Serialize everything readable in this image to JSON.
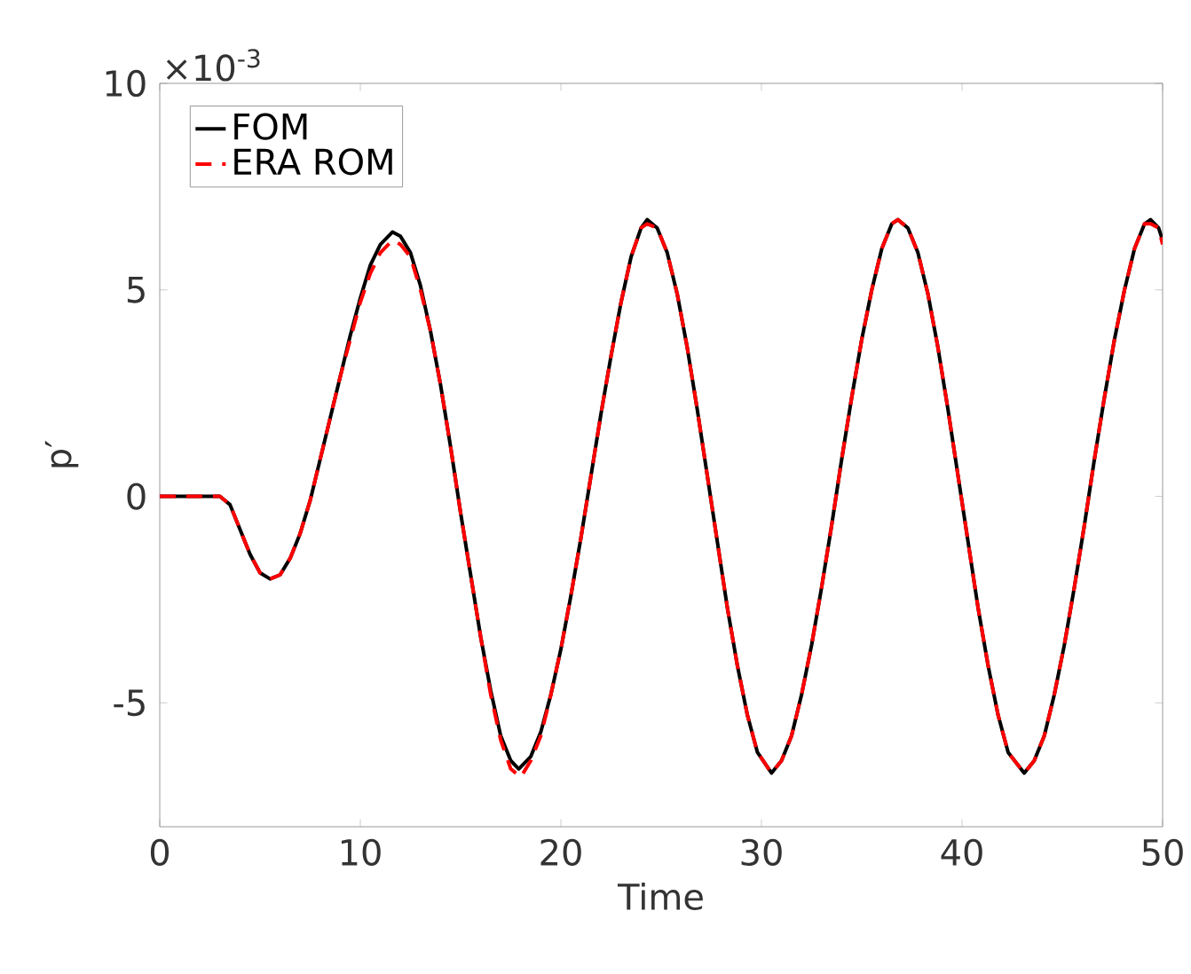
{
  "chart_data": {
    "type": "line",
    "xlabel": "Time",
    "ylabel": "p′",
    "annotations": [
      "×10$^{-3}$"
    ],
    "xlim": [
      0,
      50
    ],
    "ylim": [
      -8,
      10
    ],
    "xticks": [
      0,
      10,
      20,
      30,
      40,
      50
    ],
    "yticks": [
      -5,
      0,
      5,
      10
    ],
    "grid": false,
    "legend": "top left",
    "marker": "none",
    "series": [
      {
        "name": "FOM",
        "color": "#000000",
        "line_style": "solid",
        "x": [
          0,
          1,
          2,
          3,
          3.5,
          4,
          4.5,
          5,
          5.5,
          6,
          6.5,
          7,
          7.5,
          8,
          8.5,
          9,
          9.5,
          10,
          10.5,
          11,
          11.6,
          12,
          12.5,
          13,
          13.5,
          14,
          14.5,
          15,
          15.5,
          16,
          16.5,
          17,
          17.5,
          17.9,
          18.5,
          19,
          19.5,
          20,
          20.5,
          21,
          21.5,
          22,
          22.5,
          23,
          23.5,
          24,
          24.3,
          24.8,
          25.3,
          25.8,
          26.3,
          26.8,
          27.3,
          27.8,
          28.3,
          28.8,
          29.3,
          29.8,
          30.5,
          31,
          31.5,
          32,
          32.5,
          33,
          33.5,
          34,
          34.5,
          35,
          35.5,
          36,
          36.5,
          36.8,
          37.3,
          37.8,
          38.3,
          38.8,
          39.3,
          39.8,
          40.3,
          40.8,
          41.3,
          41.8,
          42.3,
          43.1,
          43.6,
          44.1,
          44.6,
          45.1,
          45.6,
          46.1,
          46.6,
          47.1,
          47.6,
          48.1,
          48.6,
          49.1,
          49.4,
          49.8,
          50
        ],
        "values": [
          0,
          0,
          0,
          0,
          -0.2,
          -0.8,
          -1.4,
          -1.85,
          -2.0,
          -1.9,
          -1.5,
          -0.9,
          -0.1,
          0.9,
          1.9,
          2.9,
          3.9,
          4.8,
          5.6,
          6.1,
          6.4,
          6.3,
          5.9,
          5.1,
          4.0,
          2.7,
          1.2,
          -0.4,
          -1.9,
          -3.4,
          -4.7,
          -5.8,
          -6.4,
          -6.6,
          -6.3,
          -5.7,
          -4.8,
          -3.7,
          -2.4,
          -1.0,
          0.5,
          2.0,
          3.4,
          4.7,
          5.8,
          6.5,
          6.7,
          6.5,
          5.9,
          4.9,
          3.6,
          2.1,
          0.5,
          -1.1,
          -2.7,
          -4.1,
          -5.3,
          -6.2,
          -6.7,
          -6.4,
          -5.8,
          -4.8,
          -3.6,
          -2.2,
          -0.7,
          0.9,
          2.4,
          3.8,
          5.0,
          6.0,
          6.6,
          6.7,
          6.5,
          5.9,
          4.9,
          3.6,
          2.1,
          0.5,
          -1.1,
          -2.7,
          -4.1,
          -5.3,
          -6.2,
          -6.7,
          -6.4,
          -5.8,
          -4.8,
          -3.6,
          -2.2,
          -0.7,
          0.9,
          2.4,
          3.8,
          5.0,
          6.0,
          6.6,
          6.7,
          6.5,
          6.2
        ]
      },
      {
        "name": "ERA ROM",
        "color": "#ff0000",
        "line_style": "dashed",
        "x": [
          0,
          1,
          2,
          3,
          3.5,
          4,
          4.5,
          5,
          5.5,
          6,
          6.5,
          7,
          7.5,
          8,
          8.5,
          9,
          9.5,
          10,
          10.5,
          11,
          11.6,
          12,
          12.5,
          13,
          13.5,
          14,
          14.5,
          15,
          15.5,
          16,
          16.5,
          17,
          17.5,
          18,
          18.5,
          19,
          19.5,
          20,
          20.5,
          21,
          21.5,
          22,
          22.5,
          23,
          23.5,
          24,
          24.3,
          24.8,
          25.3,
          25.8,
          26.3,
          26.8,
          27.3,
          27.8,
          28.3,
          28.8,
          29.3,
          29.8,
          30.5,
          31,
          31.5,
          32,
          32.5,
          33,
          33.5,
          34,
          34.5,
          35,
          35.5,
          36,
          36.5,
          36.8,
          37.3,
          37.8,
          38.3,
          38.8,
          39.3,
          39.8,
          40.3,
          40.8,
          41.3,
          41.8,
          42.3,
          43.1,
          43.6,
          44.1,
          44.6,
          45.1,
          45.6,
          46.1,
          46.6,
          47.1,
          47.6,
          48.1,
          48.6,
          49.1,
          49.4,
          49.8,
          50
        ],
        "values": [
          0,
          0,
          0,
          0,
          -0.2,
          -0.8,
          -1.4,
          -1.85,
          -2.0,
          -1.9,
          -1.5,
          -0.9,
          -0.1,
          0.9,
          1.9,
          2.9,
          3.8,
          4.7,
          5.4,
          5.9,
          6.2,
          6.1,
          5.8,
          5.0,
          4.0,
          2.7,
          1.2,
          -0.4,
          -1.9,
          -3.4,
          -4.8,
          -5.9,
          -6.6,
          -6.8,
          -6.4,
          -5.8,
          -4.8,
          -3.7,
          -2.4,
          -1.0,
          0.5,
          2.0,
          3.4,
          4.7,
          5.8,
          6.5,
          6.6,
          6.5,
          5.9,
          4.9,
          3.6,
          2.1,
          0.5,
          -1.1,
          -2.7,
          -4.1,
          -5.3,
          -6.2,
          -6.7,
          -6.4,
          -5.8,
          -4.8,
          -3.6,
          -2.2,
          -0.7,
          0.9,
          2.4,
          3.8,
          5.0,
          6.0,
          6.6,
          6.7,
          6.5,
          5.9,
          4.9,
          3.6,
          2.1,
          0.5,
          -1.1,
          -2.7,
          -4.1,
          -5.3,
          -6.2,
          -6.7,
          -6.4,
          -5.8,
          -4.8,
          -3.6,
          -2.2,
          -0.7,
          0.9,
          2.4,
          3.8,
          5.0,
          6.0,
          6.6,
          6.6,
          6.5,
          6.1
        ]
      }
    ]
  }
}
